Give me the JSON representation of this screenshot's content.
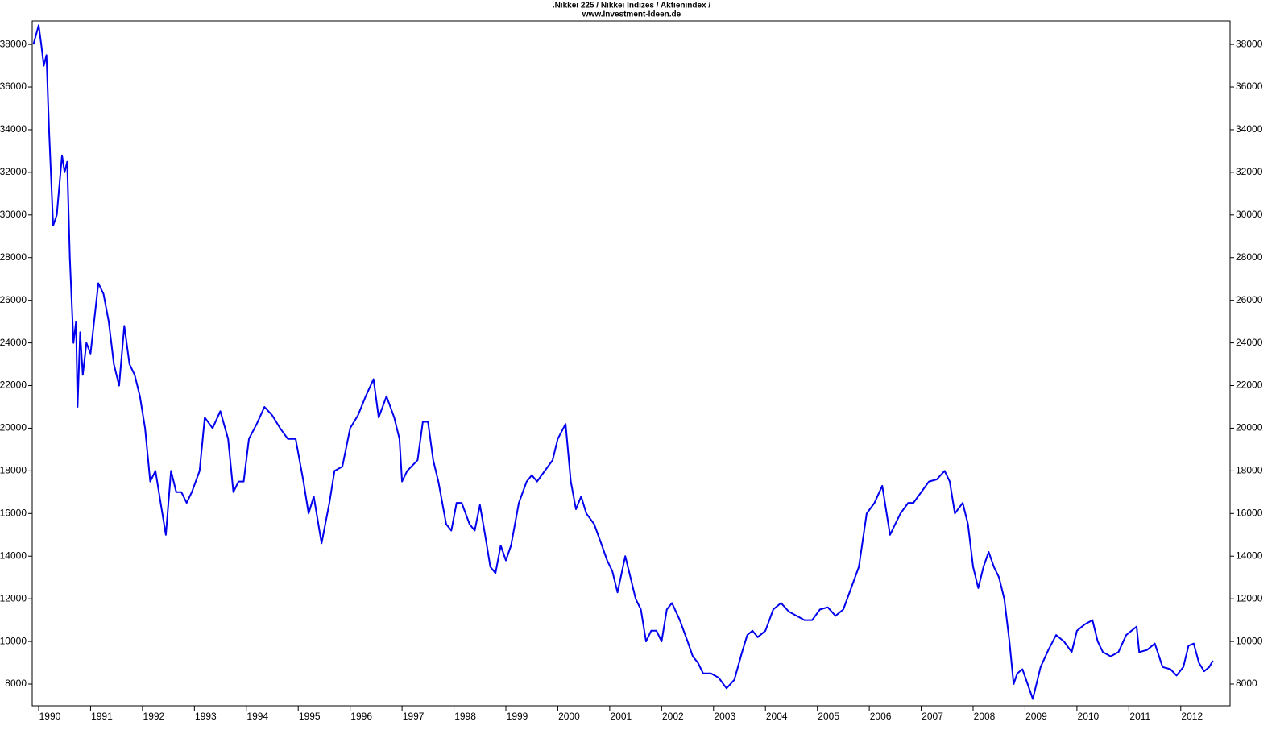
{
  "chart_data": {
    "type": "line",
    "title": ".Nikkei 225 / Nikkei Indizes / Aktienindex /",
    "subtitle": "www.Investment-Ideen.de",
    "xlim": [
      1989.876,
      2012.95
    ],
    "ylim": [
      6980,
      39100
    ],
    "xticks": [
      1990,
      1991,
      1992,
      1993,
      1994,
      1995,
      1996,
      1997,
      1998,
      1999,
      2000,
      2001,
      2002,
      2003,
      2004,
      2005,
      2006,
      2007,
      2008,
      2009,
      2010,
      2011,
      2012
    ],
    "yticks": [
      8000,
      10000,
      12000,
      14000,
      16000,
      18000,
      20000,
      22000,
      24000,
      26000,
      28000,
      30000,
      32000,
      34000,
      36000,
      38000
    ],
    "series": [
      {
        "name": "Nikkei 225",
        "color": "#0000ee",
        "x": [
          1989.9,
          1990.0,
          1990.05,
          1990.1,
          1990.15,
          1990.2,
          1990.28,
          1990.35,
          1990.45,
          1990.5,
          1990.55,
          1990.6,
          1990.67,
          1990.72,
          1990.75,
          1990.8,
          1990.85,
          1990.92,
          1991.0,
          1991.15,
          1991.25,
          1991.35,
          1991.45,
          1991.55,
          1991.65,
          1991.75,
          1991.85,
          1991.95,
          1992.05,
          1992.15,
          1992.25,
          1992.35,
          1992.45,
          1992.55,
          1992.65,
          1992.75,
          1992.85,
          1992.95,
          1993.1,
          1993.2,
          1993.35,
          1993.5,
          1993.65,
          1993.75,
          1993.85,
          1993.95,
          1994.05,
          1994.2,
          1994.35,
          1994.5,
          1994.65,
          1994.8,
          1994.95,
          1995.1,
          1995.2,
          1995.3,
          1995.45,
          1995.6,
          1995.7,
          1995.85,
          1996.0,
          1996.15,
          1996.3,
          1996.45,
          1996.55,
          1996.7,
          1996.85,
          1996.95,
          1997.0,
          1997.1,
          1997.3,
          1997.4,
          1997.5,
          1997.6,
          1997.7,
          1997.85,
          1997.95,
          1998.05,
          1998.15,
          1998.3,
          1998.4,
          1998.5,
          1998.6,
          1998.7,
          1998.8,
          1998.9,
          1999.0,
          1999.1,
          1999.25,
          1999.4,
          1999.5,
          1999.6,
          1999.75,
          1999.9,
          2000.0,
          2000.15,
          2000.25,
          2000.35,
          2000.45,
          2000.55,
          2000.7,
          2000.85,
          2000.95,
          2001.05,
          2001.15,
          2001.3,
          2001.4,
          2001.5,
          2001.6,
          2001.7,
          2001.8,
          2001.9,
          2002.0,
          2002.1,
          2002.2,
          2002.35,
          2002.5,
          2002.6,
          2002.7,
          2002.8,
          2002.95,
          2003.1,
          2003.25,
          2003.4,
          2003.55,
          2003.65,
          2003.75,
          2003.85,
          2004.0,
          2004.15,
          2004.3,
          2004.45,
          2004.6,
          2004.75,
          2004.9,
          2005.05,
          2005.2,
          2005.35,
          2005.5,
          2005.65,
          2005.8,
          2005.95,
          2006.1,
          2006.25,
          2006.4,
          2006.5,
          2006.6,
          2006.75,
          2006.85,
          2007.0,
          2007.15,
          2007.3,
          2007.45,
          2007.55,
          2007.65,
          2007.8,
          2007.9,
          2008.0,
          2008.1,
          2008.2,
          2008.3,
          2008.4,
          2008.5,
          2008.6,
          2008.7,
          2008.78,
          2008.85,
          2008.95,
          2009.05,
          2009.15,
          2009.3,
          2009.45,
          2009.6,
          2009.75,
          2009.9,
          2010.0,
          2010.15,
          2010.3,
          2010.4,
          2010.5,
          2010.65,
          2010.8,
          2010.95,
          2011.05,
          2011.15,
          2011.2,
          2011.35,
          2011.5,
          2011.65,
          2011.8,
          2011.92,
          2012.05,
          2012.15,
          2012.25,
          2012.35,
          2012.45,
          2012.55,
          2012.62
        ],
        "values": [
          38000,
          38900,
          38000,
          37000,
          37500,
          34000,
          29500,
          30000,
          32800,
          32000,
          32500,
          28000,
          24000,
          25000,
          21000,
          24500,
          22500,
          24000,
          23500,
          26800,
          26300,
          25000,
          23000,
          22000,
          24800,
          23000,
          22500,
          21500,
          20000,
          17500,
          18000,
          16500,
          15000,
          18000,
          17000,
          17000,
          16500,
          17000,
          18000,
          20500,
          20000,
          20800,
          19500,
          17000,
          17500,
          17500,
          19500,
          20200,
          21000,
          20600,
          20000,
          19500,
          19500,
          17500,
          16000,
          16800,
          14600,
          16500,
          18000,
          18200,
          20000,
          20600,
          21500,
          22300,
          20500,
          21500,
          20500,
          19500,
          17500,
          18000,
          18500,
          20300,
          20300,
          18500,
          17500,
          15500,
          15200,
          16500,
          16500,
          15500,
          15200,
          16400,
          15000,
          13500,
          13200,
          14500,
          13800,
          14500,
          16500,
          17500,
          17800,
          17500,
          18000,
          18500,
          19500,
          20200,
          17500,
          16200,
          16800,
          16000,
          15500,
          14500,
          13800,
          13300,
          12300,
          14000,
          13000,
          12000,
          11500,
          10000,
          10500,
          10500,
          10000,
          11500,
          11800,
          11000,
          10000,
          9300,
          9000,
          8500,
          8500,
          8300,
          7800,
          8200,
          9500,
          10300,
          10500,
          10200,
          10500,
          11500,
          11800,
          11400,
          11200,
          11000,
          11000,
          11500,
          11600,
          11200,
          11500,
          12500,
          13500,
          16000,
          16500,
          17300,
          15000,
          15500,
          16000,
          16500,
          16500,
          17000,
          17500,
          17600,
          18000,
          17500,
          16000,
          16500,
          15500,
          13500,
          12500,
          13500,
          14200,
          13500,
          13000,
          12000,
          10000,
          8000,
          8500,
          8700,
          8000,
          7300,
          8800,
          9600,
          10300,
          10000,
          9500,
          10500,
          10800,
          11000,
          10000,
          9500,
          9300,
          9500,
          10300,
          10500,
          10700,
          9500,
          9600,
          9900,
          8800,
          8700,
          8400,
          8800,
          9800,
          9900,
          9000,
          8600,
          8800,
          9100
        ]
      }
    ]
  }
}
